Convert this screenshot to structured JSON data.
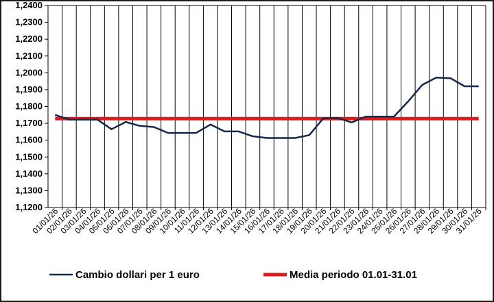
{
  "chart_data": {
    "type": "line",
    "title": "",
    "xlabel": "",
    "ylabel": "",
    "ylim": [
      1.12,
      1.24
    ],
    "ytick_step": 0.01,
    "ytick_labels": [
      "1,1200",
      "1,1300",
      "1,1400",
      "1,1500",
      "1,1600",
      "1,1700",
      "1,1800",
      "1,1900",
      "1,2000",
      "1,2100",
      "1,2200",
      "1,2300",
      "1,2400"
    ],
    "grid": "vertical",
    "legend_placement": "bottom",
    "categories": [
      "01/01/26",
      "02/01/26",
      "03/01/26",
      "04/01/26",
      "05/01/26",
      "06/01/26",
      "07/01/26",
      "08/01/26",
      "09/01/26",
      "10/01/26",
      "11/01/26",
      "12/01/26",
      "13/01/26",
      "14/01/26",
      "15/01/26",
      "16/01/26",
      "17/01/26",
      "18/01/26",
      "19/01/26",
      "20/01/26",
      "21/01/26",
      "22/01/26",
      "23/01/26",
      "24/01/26",
      "25/01/26",
      "26/01/26",
      "27/01/26",
      "28/01/26",
      "29/01/26",
      "30/01/26",
      "31/01/26"
    ],
    "series": [
      {
        "name": "Cambio dollari per 1 euro",
        "color": "#14284b",
        "values": [
          1.175,
          1.1722,
          1.1722,
          1.1722,
          1.1665,
          1.1708,
          1.1685,
          1.1678,
          1.1643,
          1.1643,
          1.1643,
          1.1693,
          1.1652,
          1.1652,
          1.1623,
          1.1613,
          1.1613,
          1.1613,
          1.163,
          1.173,
          1.1732,
          1.1705,
          1.174,
          1.174,
          1.174,
          1.183,
          1.1928,
          1.1972,
          1.1968,
          1.192,
          1.192
        ]
      },
      {
        "name": "Media periodo 01.01-31.01",
        "color": "#dc1c1c",
        "values": [
          1.1728,
          1.1728,
          1.1728,
          1.1728,
          1.1728,
          1.1728,
          1.1728,
          1.1728,
          1.1728,
          1.1728,
          1.1728,
          1.1728,
          1.1728,
          1.1728,
          1.1728,
          1.1728,
          1.1728,
          1.1728,
          1.1728,
          1.1728,
          1.1728,
          1.1728,
          1.1728,
          1.1728,
          1.1728,
          1.1728,
          1.1728,
          1.1728,
          1.1728,
          1.1728,
          1.1728
        ]
      }
    ]
  }
}
